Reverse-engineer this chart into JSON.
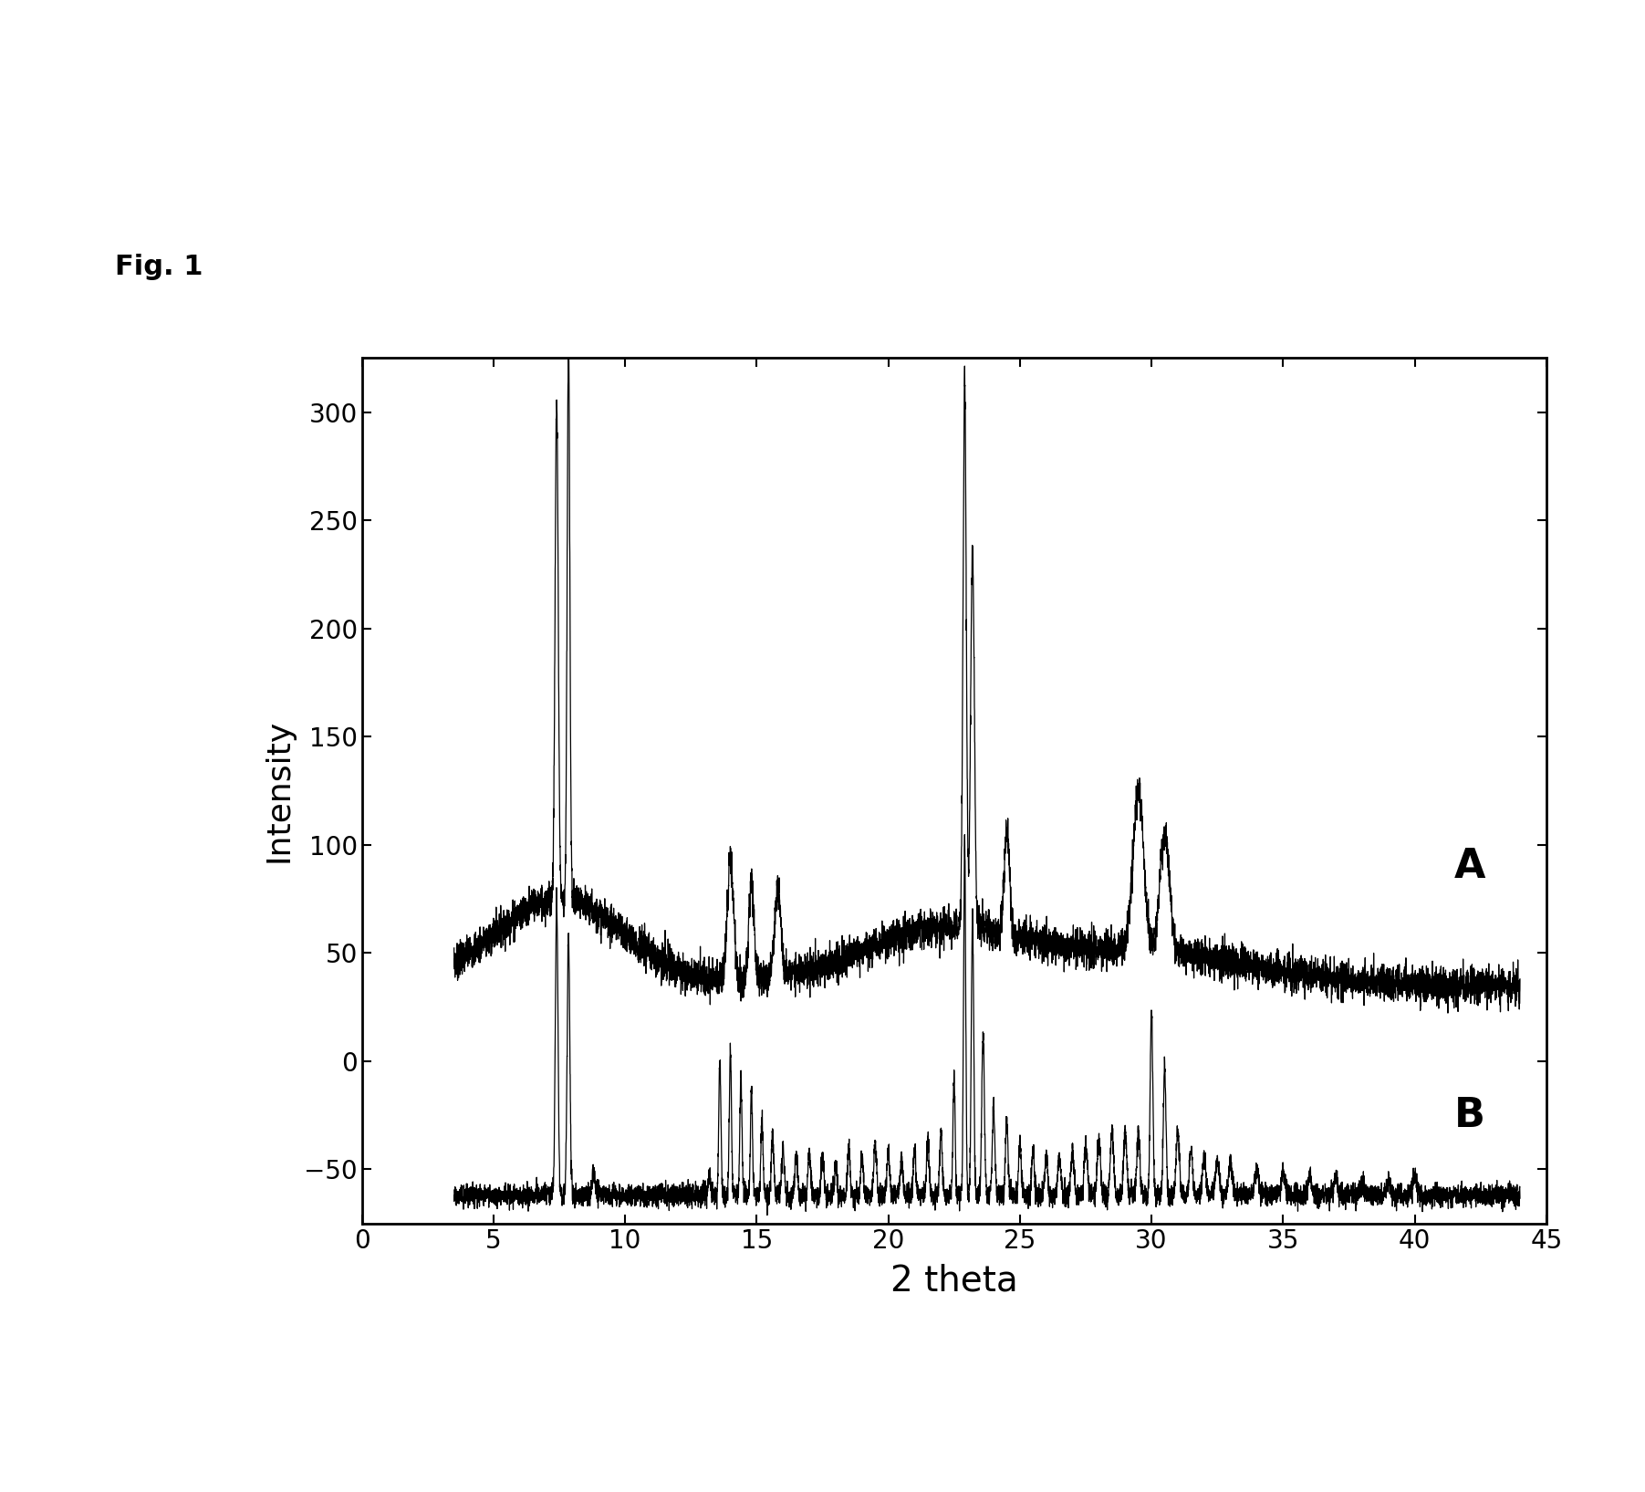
{
  "xlabel": "2 theta",
  "ylabel": "Intensity",
  "xlim": [
    0,
    45
  ],
  "ylim": [
    -75,
    325
  ],
  "yticks": [
    -50,
    0,
    50,
    100,
    150,
    200,
    250,
    300
  ],
  "xticks": [
    0,
    5,
    10,
    15,
    20,
    25,
    30,
    35,
    40,
    45
  ],
  "label_A": "A",
  "label_B": "B",
  "background_color": "#ffffff",
  "line_color": "#000000",
  "fig_label": "Fig. 1"
}
